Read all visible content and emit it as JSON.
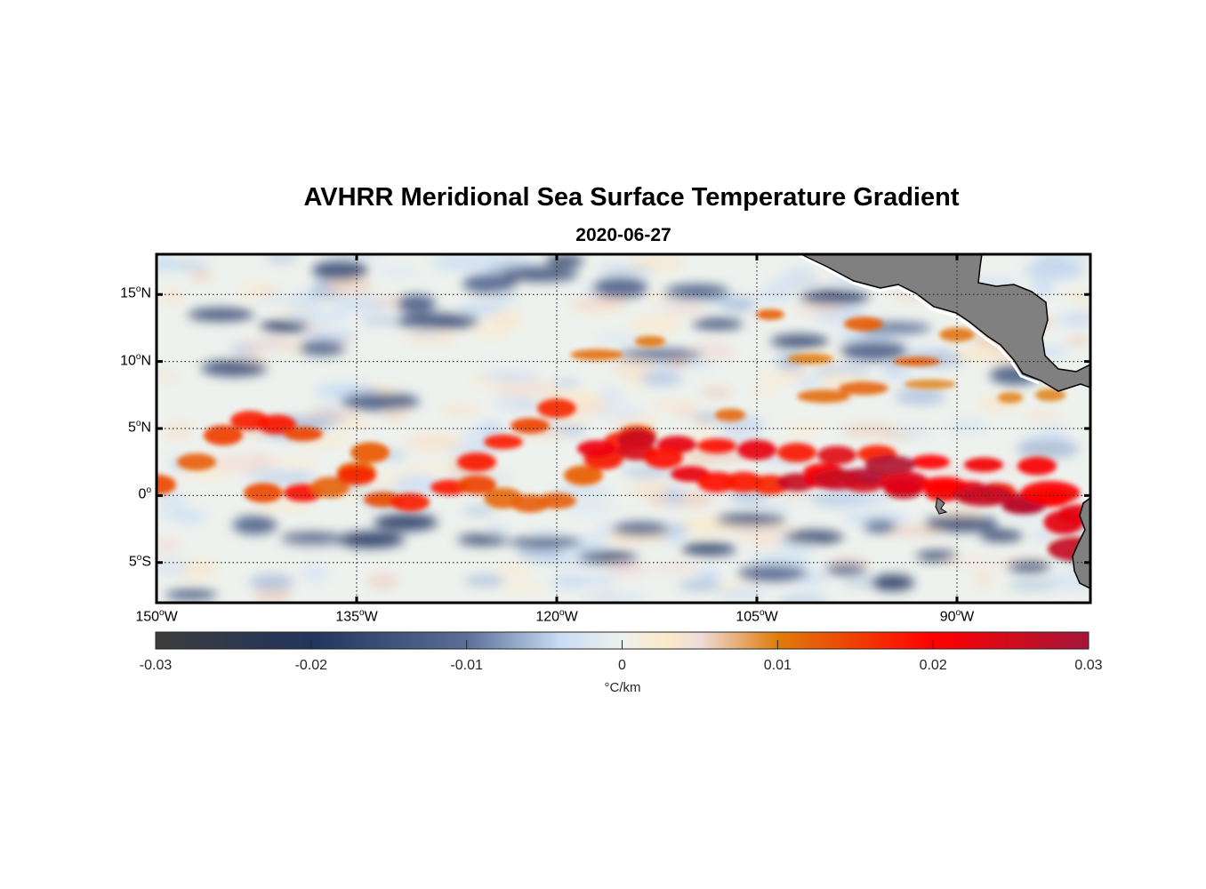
{
  "header": {
    "title": "AVHRR Meridional Sea Surface Temperature Gradient",
    "date": "2020-06-27"
  },
  "chart_data": {
    "type": "heatmap",
    "title": "AVHRR Meridional Sea Surface Temperature Gradient",
    "subtitle": "2020-06-27",
    "variable": "Meridional SST gradient",
    "units": "°C/km",
    "lon_range": [
      -150,
      -80
    ],
    "lat_range": [
      -8,
      18
    ],
    "x_ticks": [
      {
        "value": -150,
        "label": "150",
        "deg": "o",
        "hemi": "W"
      },
      {
        "value": -135,
        "label": "135",
        "deg": "o",
        "hemi": "W"
      },
      {
        "value": -120,
        "label": "120",
        "deg": "o",
        "hemi": "W"
      },
      {
        "value": -105,
        "label": "105",
        "deg": "o",
        "hemi": "W"
      },
      {
        "value": -90,
        "label": "90",
        "deg": "o",
        "hemi": "W"
      }
    ],
    "y_ticks": [
      {
        "value": 15,
        "label": "15",
        "deg": "o",
        "hemi": "N"
      },
      {
        "value": 10,
        "label": "10",
        "deg": "o",
        "hemi": "N"
      },
      {
        "value": 5,
        "label": "5",
        "deg": "o",
        "hemi": "N"
      },
      {
        "value": 0,
        "label": "0",
        "deg": "o",
        "hemi": ""
      },
      {
        "value": -5,
        "label": "5",
        "deg": "o",
        "hemi": "S"
      }
    ],
    "grid": true,
    "colorbar": {
      "range": [
        -0.03,
        0.03
      ],
      "ticks": [
        -0.03,
        -0.02,
        -0.01,
        0,
        0.01,
        0.02,
        0.03
      ],
      "tick_labels": [
        "-0.03",
        "-0.02",
        "-0.01",
        "0",
        "0.01",
        "0.02",
        "0.03"
      ],
      "label": "°C/km",
      "placement": "bottom",
      "stops": [
        {
          "v": -0.03,
          "color": "#3c3c3c"
        },
        {
          "v": -0.02,
          "color": "#22355e"
        },
        {
          "v": -0.01,
          "color": "#5a6e98"
        },
        {
          "v": -0.004,
          "color": "#c8dcf4"
        },
        {
          "v": 0,
          "color": "#eef2ee"
        },
        {
          "v": 0.003,
          "color": "#fbe8c8"
        },
        {
          "v": 0.005,
          "color": "#eedcdc"
        },
        {
          "v": 0.01,
          "color": "#e07c0a"
        },
        {
          "v": 0.02,
          "color": "#ff0000"
        },
        {
          "v": 0.03,
          "color": "#a3163a"
        }
      ]
    },
    "features": [
      {
        "name": "equatorial front (positive gradient band)",
        "lon_range": [
          -150,
          -80
        ],
        "lat_center_approx": 1,
        "value_approx": 0.02
      },
      {
        "name": "negative gradient patches north",
        "lat_range": [
          10,
          18
        ],
        "value_approx": -0.015
      },
      {
        "name": "negative gradient band south",
        "lat_range": [
          -5,
          -2
        ],
        "value_approx": -0.012
      }
    ],
    "land_color": "#808080"
  }
}
